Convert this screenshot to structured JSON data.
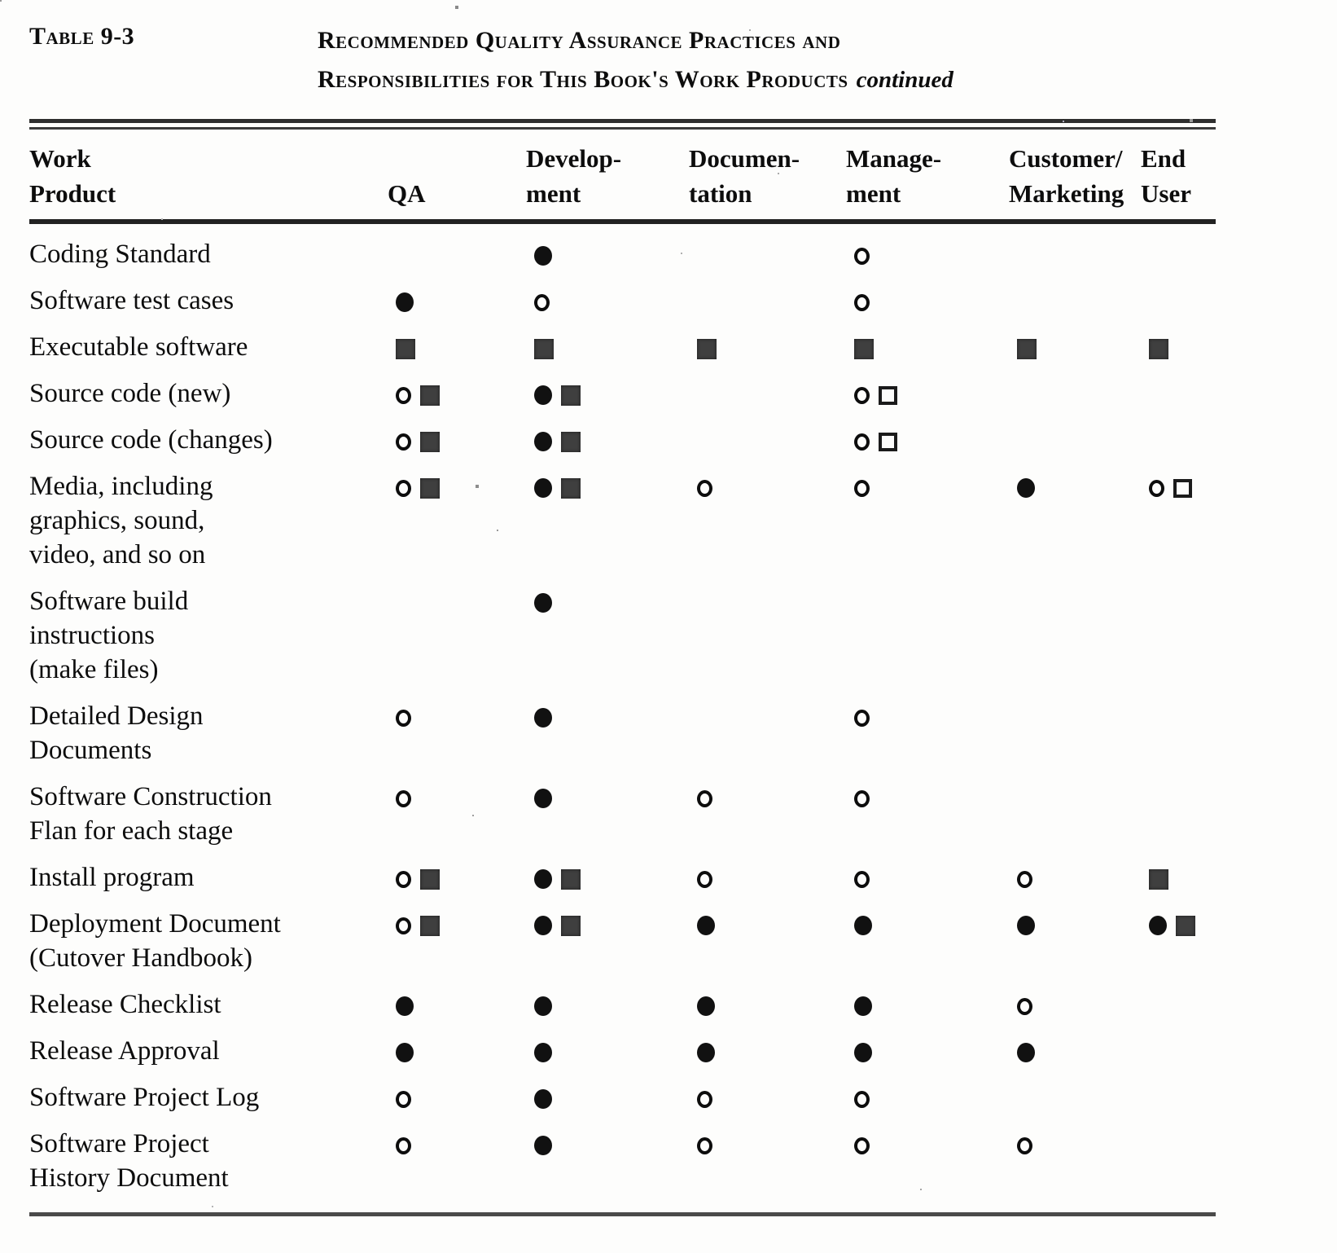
{
  "table": {
    "label": "Table 9-3",
    "title_lines": [
      "Recommended Quality Assurance Practices and",
      "Responsibilities for This Book's Work Products"
    ],
    "continued_note": "continued",
    "columns": [
      {
        "id": "work-product",
        "label_lines": [
          "Work",
          "Product"
        ]
      },
      {
        "id": "qa",
        "label_lines": [
          "QA"
        ]
      },
      {
        "id": "development",
        "label_lines": [
          "Develop-",
          "ment"
        ]
      },
      {
        "id": "documentation",
        "label_lines": [
          "Documen-",
          "tation"
        ]
      },
      {
        "id": "management",
        "label_lines": [
          "Manage-",
          "ment"
        ]
      },
      {
        "id": "customer-marketing",
        "label_lines": [
          "Customer/",
          "Marketing"
        ]
      },
      {
        "id": "end-user",
        "label_lines": [
          "End",
          "User"
        ]
      }
    ],
    "symbol_glyphs": {
      "open-circle": "○",
      "filled-circle": "●",
      "open-square": "□",
      "filled-square": "■"
    },
    "rows": [
      {
        "lines": [
          "Coding Standard"
        ],
        "cells": [
          [],
          [
            "filled-circle"
          ],
          [],
          [
            "open-circle"
          ],
          [],
          []
        ]
      },
      {
        "lines": [
          "Software test cases"
        ],
        "cells": [
          [
            "filled-circle"
          ],
          [
            "open-circle"
          ],
          [],
          [
            "open-circle"
          ],
          [],
          []
        ]
      },
      {
        "lines": [
          "Executable software"
        ],
        "cells": [
          [
            "filled-square"
          ],
          [
            "filled-square"
          ],
          [
            "filled-square"
          ],
          [
            "filled-square"
          ],
          [
            "filled-square"
          ],
          [
            "filled-square"
          ]
        ]
      },
      {
        "lines": [
          "Source code (new)"
        ],
        "cells": [
          [
            "open-circle",
            "filled-square"
          ],
          [
            "filled-circle",
            "filled-square"
          ],
          [],
          [
            "open-circle",
            "open-square"
          ],
          [],
          []
        ]
      },
      {
        "lines": [
          "Source code (changes)"
        ],
        "cells": [
          [
            "open-circle",
            "filled-square"
          ],
          [
            "filled-circle",
            "filled-square"
          ],
          [],
          [
            "open-circle",
            "open-square"
          ],
          [],
          []
        ]
      },
      {
        "lines": [
          "Media, including",
          "graphics, sound,",
          "video, and so on"
        ],
        "cells": [
          [
            "open-circle",
            "filled-square"
          ],
          [
            "filled-circle",
            "filled-square"
          ],
          [
            "open-circle"
          ],
          [
            "open-circle"
          ],
          [
            "filled-circle"
          ],
          [
            "open-circle",
            "open-square"
          ]
        ]
      },
      {
        "lines": [
          "Software  build",
          "instructions",
          "(make files)"
        ],
        "cells": [
          [],
          [
            "filled-circle"
          ],
          [],
          [],
          [],
          []
        ]
      },
      {
        "lines": [
          "Detailed Design",
          "Documents"
        ],
        "cells": [
          [
            "open-circle"
          ],
          [
            "filled-circle"
          ],
          [],
          [
            "open-circle"
          ],
          [],
          []
        ]
      },
      {
        "lines": [
          "Software  Construction",
          "Flan for each stage"
        ],
        "cells": [
          [
            "open-circle"
          ],
          [
            "filled-circle"
          ],
          [
            "open-circle"
          ],
          [
            "open-circle"
          ],
          [],
          []
        ]
      },
      {
        "lines": [
          "Install program"
        ],
        "cells": [
          [
            "open-circle",
            "filled-square"
          ],
          [
            "filled-circle",
            "filled-square"
          ],
          [
            "open-circle"
          ],
          [
            "open-circle"
          ],
          [
            "open-circle"
          ],
          [
            "filled-square"
          ]
        ]
      },
      {
        "lines": [
          "Deployment Document",
          "(Cutover  Handbook)"
        ],
        "cells": [
          [
            "open-circle",
            "filled-square"
          ],
          [
            "filled-circle",
            "filled-square"
          ],
          [
            "filled-circle"
          ],
          [
            "filled-circle"
          ],
          [
            "filled-circle"
          ],
          [
            "filled-circle",
            "filled-square"
          ]
        ]
      },
      {
        "lines": [
          "Release  Checklist"
        ],
        "cells": [
          [
            "filled-circle"
          ],
          [
            "filled-circle"
          ],
          [
            "filled-circle"
          ],
          [
            "filled-circle"
          ],
          [
            "open-circle"
          ],
          []
        ]
      },
      {
        "lines": [
          "Release  Approval"
        ],
        "cells": [
          [
            "filled-circle"
          ],
          [
            "filled-circle"
          ],
          [
            "filled-circle"
          ],
          [
            "filled-circle"
          ],
          [
            "filled-circle"
          ],
          []
        ]
      },
      {
        "lines": [
          "Software Project Log"
        ],
        "cells": [
          [
            "open-circle"
          ],
          [
            "filled-circle"
          ],
          [
            "open-circle"
          ],
          [
            "open-circle"
          ],
          [],
          []
        ]
      },
      {
        "lines": [
          "Software Project",
          "History Document"
        ],
        "cells": [
          [
            "open-circle"
          ],
          [
            "filled-circle"
          ],
          [
            "open-circle"
          ],
          [
            "open-circle"
          ],
          [
            "open-circle"
          ],
          []
        ]
      }
    ]
  },
  "colors": {
    "ink": "#0d0d0d",
    "square_ink": "#3f3f3f",
    "paper": "#fdfdfc"
  }
}
